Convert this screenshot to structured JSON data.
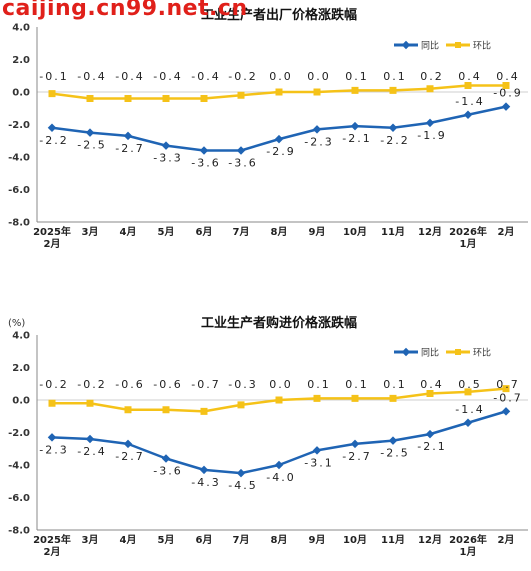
{
  "watermark": "caijing.cn99.net.cn",
  "colors": {
    "yoy": "#1f64b4",
    "mom": "#f5c218",
    "grid": "#cfcfcf",
    "text": "#333333"
  },
  "chart_data": [
    {
      "type": "line",
      "title": "工业生产者出厂价格涨跌幅",
      "unit_label": "",
      "categories": [
        "2025年\n2月",
        "3月",
        "4月",
        "5月",
        "6月",
        "7月",
        "8月",
        "9月",
        "10月",
        "11月",
        "12月",
        "2026年\n1月",
        "2月"
      ],
      "ylim": [
        -8.0,
        4.0
      ],
      "yticks": [
        "4.0",
        "2.0",
        "0.0",
        "-2.0",
        "-4.0",
        "-6.0",
        "-8.0"
      ],
      "legend_position": "top-right",
      "series": [
        {
          "name": "同比",
          "color": "#1f64b4",
          "marker": "diamond",
          "values": [
            -2.2,
            -2.5,
            -2.7,
            -3.3,
            -3.6,
            -3.6,
            -2.9,
            -2.3,
            -2.1,
            -2.2,
            -1.9,
            -1.4,
            -0.9
          ],
          "labels": [
            "-2.2",
            "-2.5",
            "-2.7",
            "-3.3",
            "-3.6",
            "-3.6",
            "-2.9",
            "-2.3",
            "-2.1",
            "-2.2",
            "-1.9",
            "-1.4",
            "-0.9"
          ]
        },
        {
          "name": "环比",
          "color": "#f5c218",
          "marker": "square",
          "values": [
            -0.1,
            -0.4,
            -0.4,
            -0.4,
            -0.4,
            -0.2,
            0.0,
            0.0,
            0.1,
            0.1,
            0.2,
            0.4,
            0.4
          ],
          "labels": [
            "-0.1",
            "-0.4",
            "-0.4",
            "-0.4",
            "-0.4",
            "-0.2",
            "0.0",
            "0.0",
            "0.1",
            "0.1",
            "0.2",
            "0.4",
            "0.4"
          ]
        }
      ]
    },
    {
      "type": "line",
      "title": "工业生产者购进价格涨跌幅",
      "unit_label": "(%)",
      "categories": [
        "2025年\n2月",
        "3月",
        "4月",
        "5月",
        "6月",
        "7月",
        "8月",
        "9月",
        "10月",
        "11月",
        "12月",
        "2026年\n1月",
        "2月"
      ],
      "ylim": [
        -8.0,
        4.0
      ],
      "yticks": [
        "4.0",
        "2.0",
        "0.0",
        "-2.0",
        "-4.0",
        "-6.0",
        "-8.0"
      ],
      "legend_position": "top-right",
      "series": [
        {
          "name": "同比",
          "color": "#1f64b4",
          "marker": "diamond",
          "values": [
            -2.3,
            -2.4,
            -2.7,
            -3.6,
            -4.3,
            -4.5,
            -4.0,
            -3.1,
            -2.7,
            -2.5,
            -2.1,
            -1.4,
            -0.7
          ],
          "labels": [
            "-2.3",
            "-2.4",
            "-2.7",
            "-3.6",
            "-4.3",
            "-4.5",
            "-4.0",
            "-3.1",
            "-2.7",
            "-2.5",
            "-2.1",
            "-1.4",
            "-0.7"
          ]
        },
        {
          "name": "环比",
          "color": "#f5c218",
          "marker": "square",
          "values": [
            -0.2,
            -0.2,
            -0.6,
            -0.6,
            -0.7,
            -0.3,
            0.0,
            0.1,
            0.1,
            0.1,
            0.4,
            0.5,
            0.7
          ],
          "labels": [
            "-0.2",
            "-0.2",
            "-0.6",
            "-0.6",
            "-0.7",
            "-0.3",
            "0.0",
            "0.1",
            "0.1",
            "0.1",
            "0.4",
            "0.5",
            "0.7"
          ]
        }
      ]
    }
  ]
}
